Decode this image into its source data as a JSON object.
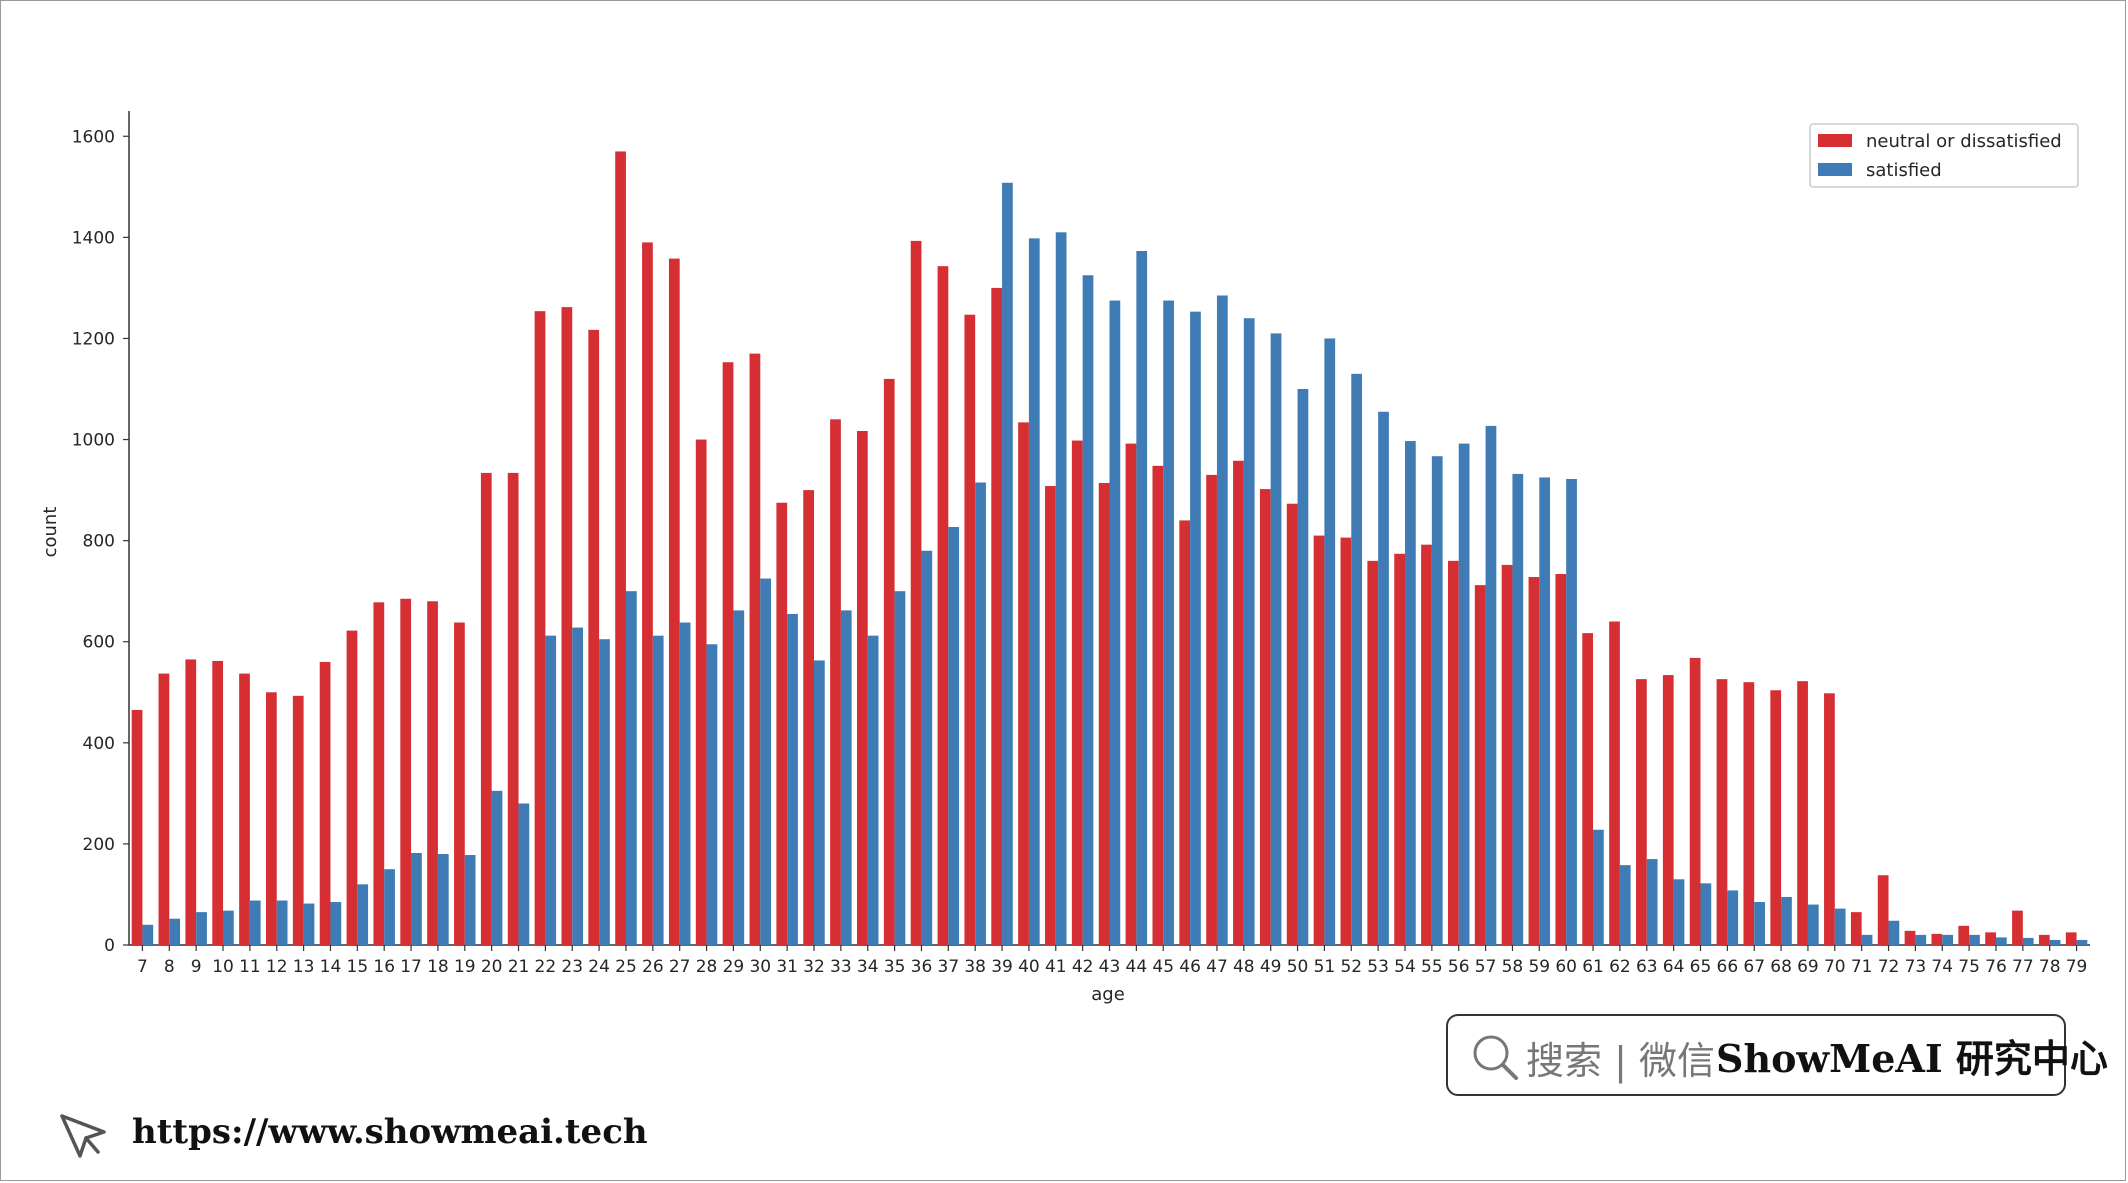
{
  "chart_data": {
    "type": "bar",
    "xlabel": "age",
    "ylabel": "count",
    "ylim": [
      0,
      1650
    ],
    "yticks": [
      0,
      200,
      400,
      600,
      800,
      1000,
      1200,
      1400,
      1600
    ],
    "legend_position": "top-right",
    "grid": false,
    "categories": [
      "7",
      "8",
      "9",
      "10",
      "11",
      "12",
      "13",
      "14",
      "15",
      "16",
      "17",
      "18",
      "19",
      "20",
      "21",
      "22",
      "23",
      "24",
      "25",
      "26",
      "27",
      "28",
      "29",
      "30",
      "31",
      "32",
      "33",
      "34",
      "35",
      "36",
      "37",
      "38",
      "39",
      "40",
      "41",
      "42",
      "43",
      "44",
      "45",
      "46",
      "47",
      "48",
      "49",
      "50",
      "51",
      "52",
      "53",
      "54",
      "55",
      "56",
      "57",
      "58",
      "59",
      "60",
      "61",
      "62",
      "63",
      "64",
      "65",
      "66",
      "67",
      "68",
      "69",
      "70",
      "71",
      "72",
      "73",
      "74",
      "75",
      "76",
      "77",
      "78",
      "79"
    ],
    "series": [
      {
        "name": "neutral or dissatisfied",
        "color": "#d62f33",
        "values": [
          465,
          537,
          565,
          562,
          537,
          500,
          493,
          560,
          622,
          678,
          685,
          680,
          638,
          934,
          934,
          1254,
          1262,
          1217,
          1570,
          1390,
          1358,
          1000,
          1153,
          1170,
          875,
          900,
          1040,
          1017,
          1120,
          1393,
          1343,
          1247,
          1300,
          1034,
          908,
          998,
          914,
          992,
          948,
          840,
          930,
          958,
          902,
          873,
          810,
          806,
          760,
          774,
          792,
          760,
          712,
          752,
          728,
          734,
          617,
          640,
          526,
          534,
          568,
          526,
          520,
          504,
          522,
          498,
          65,
          138,
          28,
          22,
          38,
          25,
          68,
          20,
          25
        ]
      },
      {
        "name": "satisfied",
        "color": "#3f7cb5",
        "values": [
          40,
          52,
          65,
          68,
          88,
          88,
          82,
          85,
          120,
          150,
          182,
          180,
          178,
          305,
          280,
          612,
          628,
          605,
          700,
          612,
          638,
          595,
          662,
          725,
          655,
          563,
          662,
          612,
          700,
          780,
          827,
          915,
          1508,
          1398,
          1410,
          1325,
          1275,
          1373,
          1275,
          1253,
          1285,
          1240,
          1210,
          1100,
          1200,
          1130,
          1055,
          997,
          967,
          992,
          1027,
          932,
          925,
          922,
          228,
          158,
          170,
          130,
          122,
          108,
          85,
          95,
          80,
          72,
          20,
          48,
          20,
          20,
          20,
          15,
          14,
          10,
          10
        ]
      }
    ]
  },
  "watermark": {
    "search_text": "搜索 | 微信",
    "brand_text": "ShowMeAI 研究中心",
    "url": "https://www.showmeai.tech",
    "search_icon": "search-icon",
    "cursor_icon": "cursor-icon"
  }
}
